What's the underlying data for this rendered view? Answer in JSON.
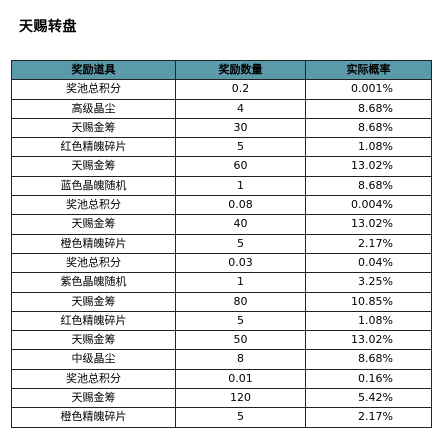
{
  "page": {
    "title": "天赐转盘"
  },
  "table": {
    "headers": [
      "奖励道具",
      "奖励数量",
      "实际概率"
    ],
    "rows": [
      {
        "item": "奖池总积分",
        "quantity": "0.2",
        "rate": "0.001%"
      },
      {
        "item": "高级晶尘",
        "quantity": "4",
        "rate": "8.68%"
      },
      {
        "item": "天赐金筹",
        "quantity": "30",
        "rate": "8.68%"
      },
      {
        "item": "红色精魄碎片",
        "quantity": "5",
        "rate": "1.08%"
      },
      {
        "item": "天赐金筹",
        "quantity": "60",
        "rate": "13.02%"
      },
      {
        "item": "蓝色晶魄随机",
        "quantity": "1",
        "rate": "8.68%"
      },
      {
        "item": "奖池总积分",
        "quantity": "0.08",
        "rate": "0.004%"
      },
      {
        "item": "天赐金筹",
        "quantity": "40",
        "rate": "13.02%"
      },
      {
        "item": "橙色精魄碎片",
        "quantity": "5",
        "rate": "2.17%"
      },
      {
        "item": "奖池总积分",
        "quantity": "0.03",
        "rate": "0.04%"
      },
      {
        "item": "紫色晶魄随机",
        "quantity": "1",
        "rate": "3.25%"
      },
      {
        "item": "天赐金筹",
        "quantity": "80",
        "rate": "10.85%"
      },
      {
        "item": "红色精魄碎片",
        "quantity": "5",
        "rate": "1.08%"
      },
      {
        "item": "天赐金筹",
        "quantity": "50",
        "rate": "13.02%"
      },
      {
        "item": "中级晶尘",
        "quantity": "8",
        "rate": "8.68%"
      },
      {
        "item": "奖池总积分",
        "quantity": "0.01",
        "rate": "0.16%"
      },
      {
        "item": "天赐金筹",
        "quantity": "120",
        "rate": "5.42%"
      },
      {
        "item": "橙色精魄碎片",
        "quantity": "5",
        "rate": "2.17%"
      }
    ]
  },
  "colors": {
    "header_background": "#5b9aa8",
    "border": "#222222"
  }
}
